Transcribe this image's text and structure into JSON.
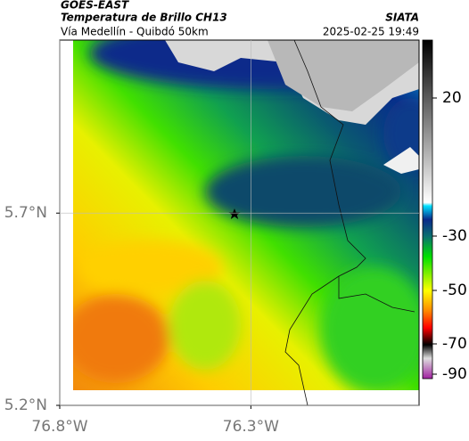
{
  "header": {
    "source": "GOES-EAST",
    "title": "Temperatura de Brillo CH13",
    "subtitle": "Vía Medellín - Quibdó 50km",
    "org": "SIATA",
    "datetime": "2025-02-25 19:49"
  },
  "map": {
    "xlim": [
      -76.8,
      -75.86
    ],
    "ylim": [
      5.2,
      6.15
    ],
    "xticks": [
      {
        "value": -76.8,
        "label": "76.8°W"
      },
      {
        "value": -76.3,
        "label": "76.3°W"
      }
    ],
    "yticks": [
      {
        "value": 5.7,
        "label": "5.7°N"
      },
      {
        "value": 5.2,
        "label": "5.2°N"
      }
    ],
    "grid": true
  },
  "colorbar": {
    "ticks": [
      20,
      -30,
      -50,
      -70,
      -90
    ]
  }
}
